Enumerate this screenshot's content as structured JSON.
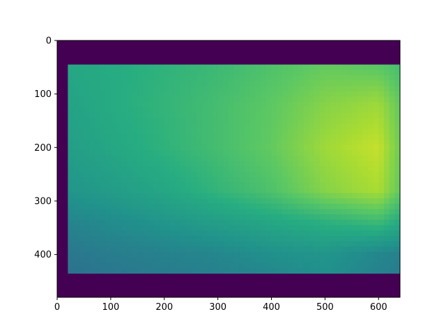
{
  "chart_data": {
    "type": "heatmap",
    "colormap": "viridis",
    "title": "",
    "xlabel": "",
    "ylabel": "",
    "xlim": [
      0,
      640
    ],
    "ylim": [
      480,
      0
    ],
    "x_ticks": [
      0,
      100,
      200,
      300,
      400,
      500,
      600
    ],
    "y_ticks": [
      0,
      100,
      200,
      300,
      400
    ],
    "x_tick_labels": [
      "0",
      "100",
      "200",
      "300",
      "400",
      "500",
      "600"
    ],
    "y_tick_labels": [
      "0",
      "100",
      "200",
      "300",
      "400"
    ],
    "image_extent": {
      "width": 640,
      "height": 480
    },
    "valid_region": {
      "x": [
        20,
        640
      ],
      "y": [
        45,
        435
      ]
    },
    "background_value": 0.0,
    "value_samples": {
      "x": [
        20,
        100,
        200,
        300,
        400,
        500,
        600,
        640
      ],
      "y": [
        45,
        120,
        200,
        280,
        340,
        400,
        435
      ],
      "values": [
        [
          0.6,
          0.62,
          0.65,
          0.68,
          0.72,
          0.76,
          0.74,
          0.7
        ],
        [
          0.58,
          0.62,
          0.66,
          0.7,
          0.75,
          0.82,
          0.86,
          0.76
        ],
        [
          0.56,
          0.6,
          0.65,
          0.7,
          0.76,
          0.86,
          0.92,
          0.78
        ],
        [
          0.52,
          0.55,
          0.6,
          0.66,
          0.72,
          0.82,
          0.88,
          0.76
        ],
        [
          0.45,
          0.48,
          0.52,
          0.56,
          0.6,
          0.64,
          0.68,
          0.62
        ],
        [
          0.4,
          0.42,
          0.44,
          0.46,
          0.5,
          0.52,
          0.46,
          0.44
        ],
        [
          0.38,
          0.4,
          0.42,
          0.44,
          0.46,
          0.5,
          0.44,
          0.42
        ]
      ]
    }
  },
  "colors": {
    "background": "#440154",
    "cmap_low": "#3b528b",
    "cmap_mid": "#21918c",
    "cmap_high": "#fde725",
    "axis": "#000000"
  }
}
